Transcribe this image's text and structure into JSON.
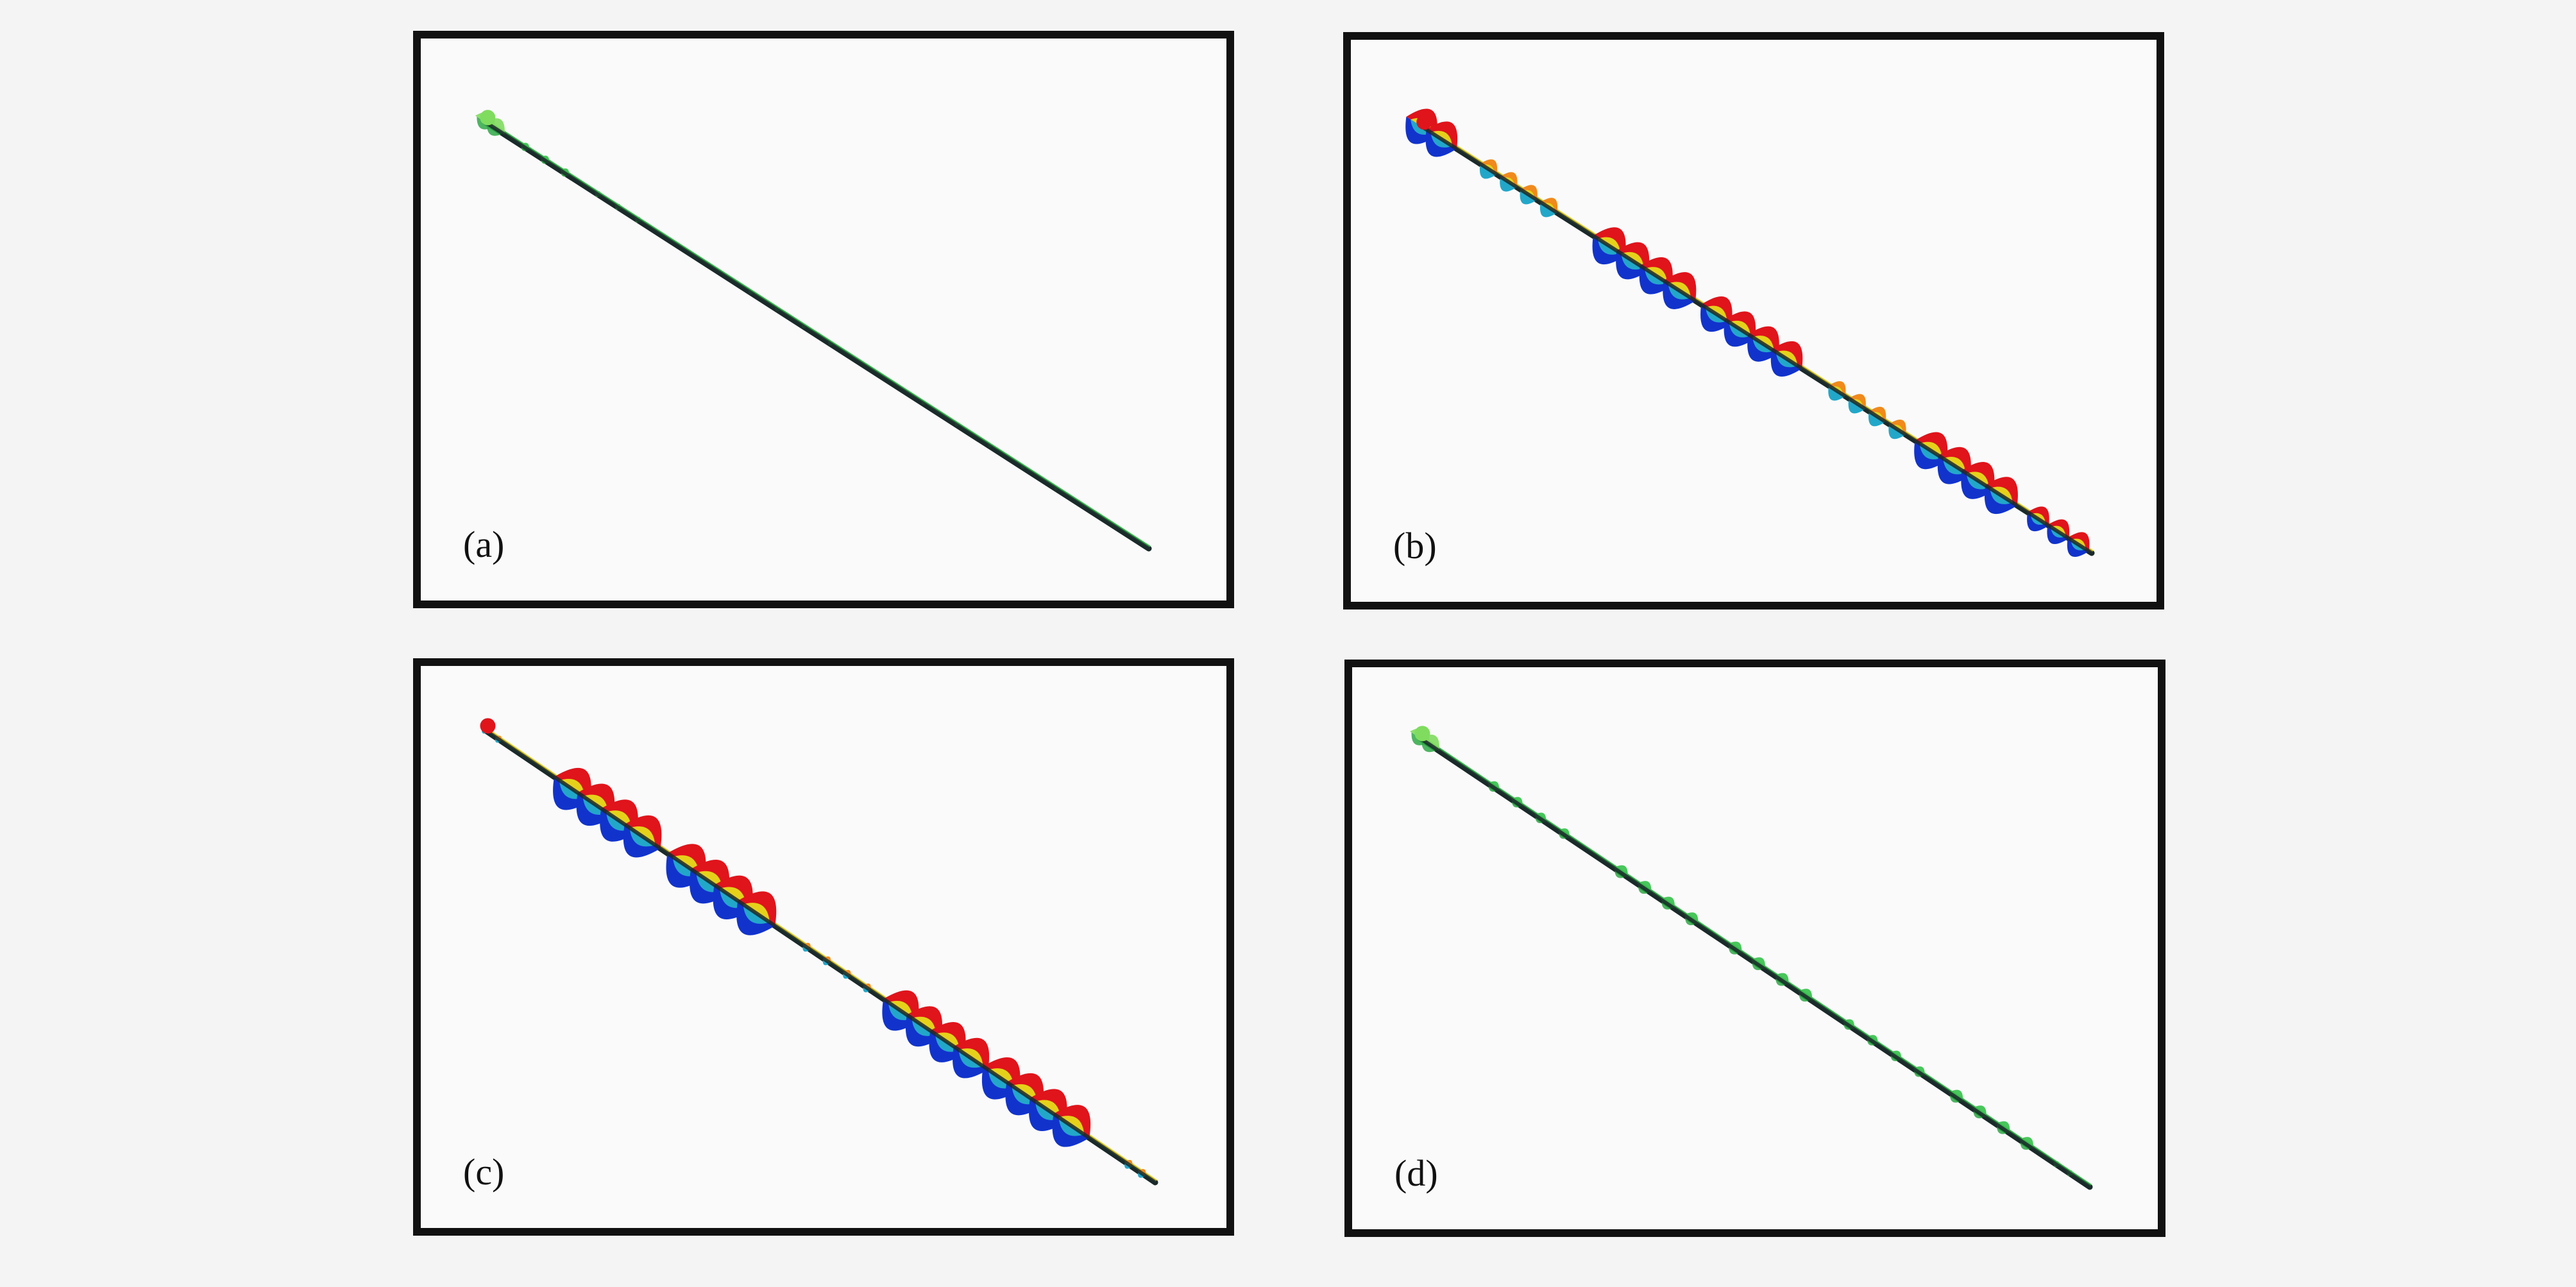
{
  "panels": [
    {
      "id": "a",
      "label": "(a)",
      "scheme": "green"
    },
    {
      "id": "b",
      "label": "(b)",
      "scheme": "red-blue"
    },
    {
      "id": "c",
      "label": "(c)",
      "scheme": "red-blue"
    },
    {
      "id": "d",
      "label": "(d)",
      "scheme": "green"
    }
  ],
  "colors": {
    "red": "#e0141b",
    "orange": "#f08a1c",
    "yellow": "#e6d11a",
    "green": "#35c04a",
    "light_green": "#7fdc5e",
    "cyan": "#22a7c9",
    "blue": "#1133cc",
    "dark_blue": "#0a1f9a",
    "line": "#1a2a2a"
  }
}
